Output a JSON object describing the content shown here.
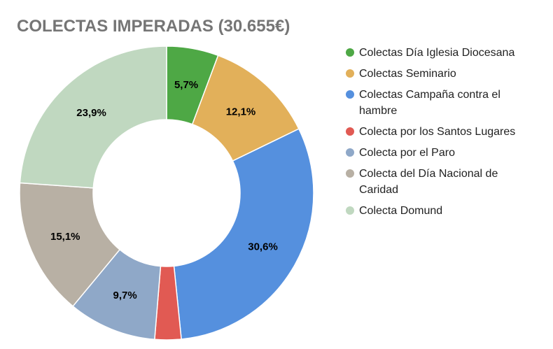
{
  "chart_data": {
    "type": "pie",
    "variant": "donut",
    "title": "COLECTAS IMPERADAS (30.655€)",
    "categories": [
      "Colectas Día Iglesia Diocesana",
      "Colectas Seminario",
      "Colectas Campaña contra el hambre",
      "Colecta por los Santos Lugares",
      "Colecta por el Paro",
      "Colecta del Día Nacional de Caridad",
      "Colecta Domund"
    ],
    "values": [
      5.7,
      12.1,
      30.6,
      2.9,
      9.7,
      15.1,
      23.9
    ],
    "labels": [
      "5,7%",
      "12,1%",
      "30,6%",
      "",
      "9,7%",
      "15,1%",
      "23,9%"
    ],
    "colors": [
      "#4ea845",
      "#e2b05a",
      "#5590de",
      "#e15a53",
      "#8fa8c8",
      "#b8b0a4",
      "#c0d8c0"
    ],
    "legend_position": "right",
    "unit": "%"
  },
  "legend": {
    "items": [
      {
        "label": "Colectas Día Iglesia Diocesana",
        "color": "#4ea845"
      },
      {
        "label": "Colectas Seminario",
        "color": "#e2b05a"
      },
      {
        "label": "Colectas Campaña contra el hambre",
        "color": "#5590de"
      },
      {
        "label": "Colecta por los Santos Lugares",
        "color": "#e15a53"
      },
      {
        "label": "Colecta por el Paro",
        "color": "#8fa8c8"
      },
      {
        "label": "Colecta del Día Nacional de Caridad",
        "color": "#b8b0a4"
      },
      {
        "label": "Colecta Domund",
        "color": "#c0d8c0"
      }
    ]
  }
}
